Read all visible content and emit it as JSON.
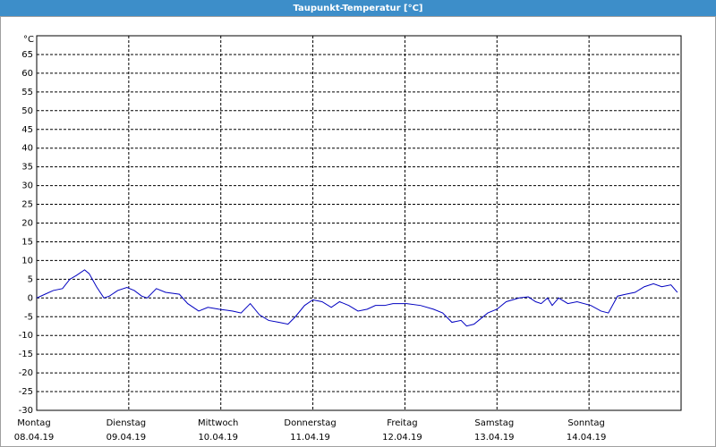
{
  "chart_data": {
    "type": "line",
    "title": "Taupunkt-Temperatur [°C]",
    "unit": "°C",
    "x": [
      0,
      0.09,
      0.18,
      0.28,
      0.36,
      0.43,
      0.52,
      0.57,
      0.65,
      0.73,
      0.79,
      0.88,
      0.98,
      1.06,
      1.14,
      1.2,
      1.3,
      1.4,
      1.55,
      1.64,
      1.76,
      1.86,
      1.98,
      2.13,
      2.22,
      2.32,
      2.42,
      2.52,
      2.63,
      2.73,
      2.81,
      2.91,
      3.0,
      3.1,
      3.2,
      3.29,
      3.39,
      3.49,
      3.59,
      3.68,
      3.78,
      3.87,
      4.02,
      4.17,
      4.31,
      4.41,
      4.51,
      4.61,
      4.67,
      4.75,
      4.9,
      5.0,
      5.1,
      5.24,
      5.34,
      5.42,
      5.48,
      5.55,
      5.6,
      5.67,
      5.77,
      5.87,
      6.02,
      6.13,
      6.21,
      6.31,
      6.4,
      6.5,
      6.6,
      6.7,
      6.79,
      6.89,
      6.96
    ],
    "series": [
      {
        "name": "Taupunkt",
        "color": "#0000c0",
        "values": [
          0,
          1,
          2,
          2.5,
          5,
          6,
          7.5,
          6.5,
          3,
          0,
          0.5,
          2,
          2.8,
          2,
          0.5,
          0,
          2.5,
          1.5,
          1,
          -1.5,
          -3.5,
          -2.5,
          -3,
          -3.5,
          -4,
          -1.5,
          -4.5,
          -6,
          -6.5,
          -7,
          -5,
          -2,
          -0.5,
          -1,
          -2.5,
          -1,
          -2,
          -3.5,
          -3,
          -2,
          -2,
          -1.5,
          -1.5,
          -2,
          -3,
          -4,
          -6.5,
          -6,
          -7.5,
          -7,
          -4,
          -3,
          -1,
          0,
          0.3,
          -1,
          -1.5,
          0,
          -2,
          0,
          -1.5,
          -1,
          -2,
          -3.5,
          -4,
          0.5,
          1,
          1.5,
          3,
          3.8,
          3,
          3.5,
          1.5
        ]
      }
    ],
    "xlim": [
      0,
      7
    ],
    "xticks": [
      {
        "value": 0,
        "label": "Montag"
      },
      {
        "value": 1,
        "label": "Dienstag"
      },
      {
        "value": 2,
        "label": "Mittwoch"
      },
      {
        "value": 3,
        "label": "Donnerstag"
      },
      {
        "value": 4,
        "label": "Freitag"
      },
      {
        "value": 5,
        "label": "Samstag"
      },
      {
        "value": 6,
        "label": "Sonntag"
      }
    ],
    "xtick_dates": [
      "08.04.19",
      "09.04.19",
      "10.04.19",
      "11.04.19",
      "12.04.19",
      "13.04.19",
      "14.04.19"
    ],
    "ylim": [
      -30,
      70
    ],
    "yticks": [
      -30,
      -25,
      -20,
      -15,
      -10,
      -5,
      0,
      5,
      10,
      15,
      20,
      25,
      30,
      35,
      40,
      45,
      50,
      55,
      60,
      65
    ],
    "grid": true
  }
}
